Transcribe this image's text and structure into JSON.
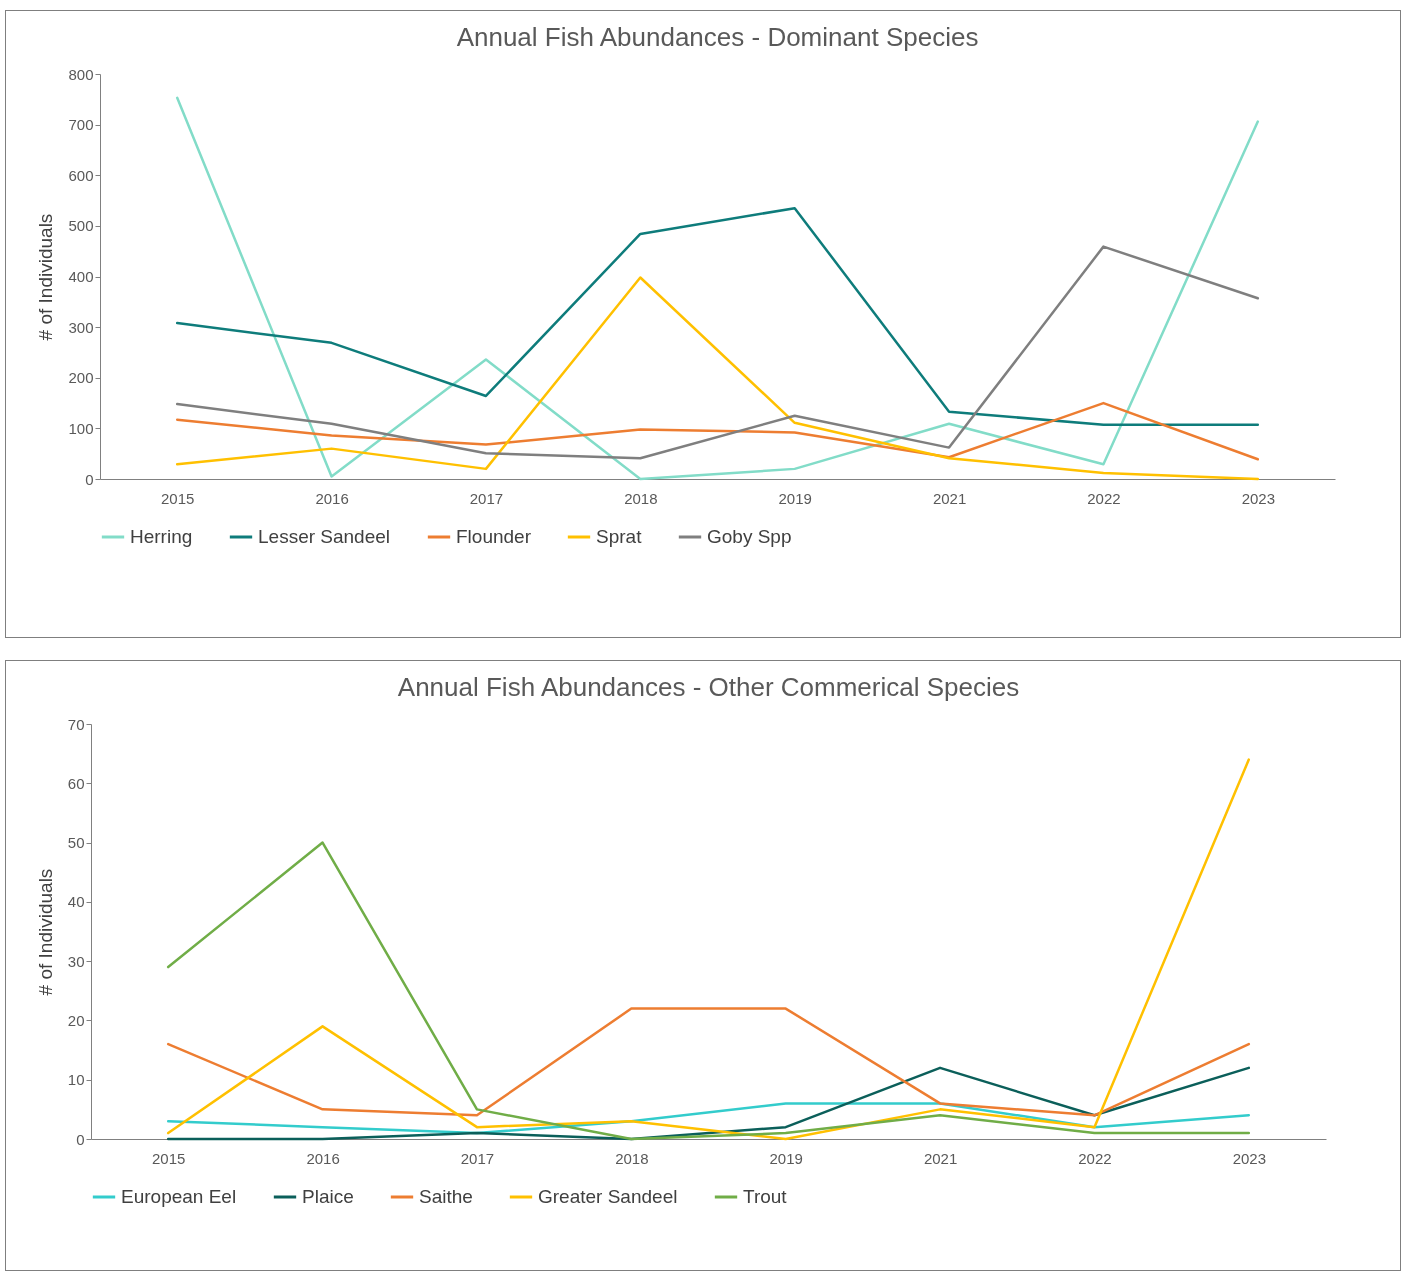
{
  "chart_data": [
    {
      "type": "line",
      "title": "Annual Fish Abundances - Dominant Species",
      "ylabel": "# of Individuals",
      "categories": [
        "2015",
        "2016",
        "2017",
        "2018",
        "2019",
        "2021",
        "2022",
        "2023"
      ],
      "ylim": [
        0,
        800
      ],
      "yticks": [
        0,
        100,
        200,
        300,
        400,
        500,
        600,
        700,
        800
      ],
      "grid": false,
      "legend": "bottom",
      "series": [
        {
          "name": "Herring",
          "color": "#82dcc8",
          "values": [
            753,
            5,
            236,
            0,
            20,
            109,
            29,
            706
          ]
        },
        {
          "name": "Lesser Sandeel",
          "color": "#0e7c7b",
          "values": [
            308,
            269,
            164,
            484,
            535,
            133,
            107,
            107
          ]
        },
        {
          "name": "Flounder",
          "color": "#ed7d31",
          "values": [
            117,
            86,
            68,
            98,
            92,
            43,
            150,
            39
          ]
        },
        {
          "name": "Sprat",
          "color": "#ffc000",
          "values": [
            29,
            60,
            20,
            398,
            111,
            41,
            12,
            0
          ]
        },
        {
          "name": "Goby Spp",
          "color": "#7f7f7f",
          "values": [
            148,
            109,
            51,
            41,
            125,
            62,
            459,
            357
          ]
        }
      ]
    },
    {
      "type": "line",
      "title": "Annual Fish Abundances - Other Commerical Species",
      "ylabel": "# of Individuals",
      "categories": [
        "2015",
        "2016",
        "2017",
        "2018",
        "2019",
        "2021",
        "2022",
        "2023"
      ],
      "ylim": [
        0,
        70
      ],
      "yticks": [
        0,
        10,
        20,
        30,
        40,
        50,
        60,
        70
      ],
      "grid": false,
      "legend": "bottom",
      "series": [
        {
          "name": "European Eel",
          "color": "#33cccc",
          "values": [
            3,
            2,
            1,
            3,
            6,
            6,
            2,
            4
          ]
        },
        {
          "name": "Plaice",
          "color": "#0b5f5a",
          "values": [
            0,
            0,
            1,
            0,
            2,
            12,
            4,
            12
          ]
        },
        {
          "name": "Saithe",
          "color": "#ed7d31",
          "values": [
            16,
            5,
            4,
            22,
            22,
            6,
            4,
            16
          ]
        },
        {
          "name": "Greater Sandeel",
          "color": "#ffc000",
          "values": [
            1,
            19,
            2,
            3,
            0,
            5,
            2,
            64
          ]
        },
        {
          "name": "Trout",
          "color": "#70ad47",
          "values": [
            29,
            50,
            5,
            0,
            1,
            4,
            1,
            1
          ]
        }
      ]
    }
  ]
}
